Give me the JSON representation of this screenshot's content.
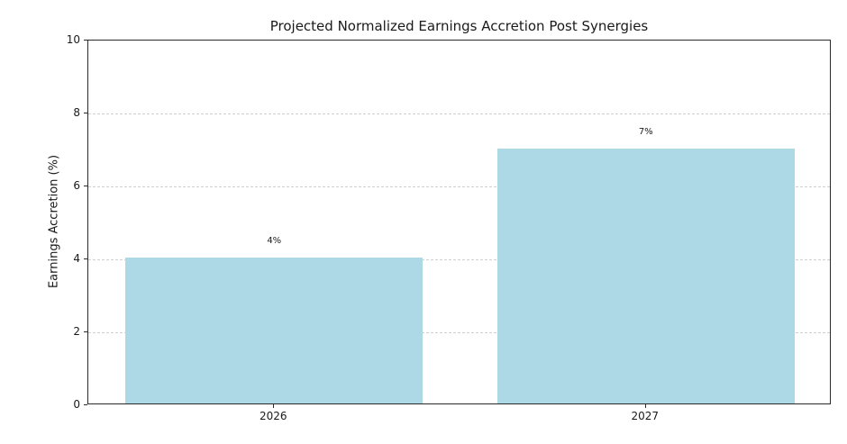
{
  "chart_data": {
    "type": "bar",
    "title": "Projected Normalized Earnings Accretion Post Synergies",
    "xlabel": "",
    "ylabel": "Earnings Accretion (%)",
    "categories": [
      "2026",
      "2027"
    ],
    "values": [
      4,
      7
    ],
    "bar_labels": [
      "4%",
      "7%"
    ],
    "ylim": [
      0,
      10
    ],
    "yticks": [
      0,
      2,
      4,
      6,
      8,
      10
    ],
    "grid": "horizontal-dashed",
    "legend": "none",
    "colors": {
      "bar_fill": "#ADD8E6",
      "gridline": "#cfcfcf",
      "spine": "#2a2a2a",
      "text": "#1a1a1a",
      "background": "#ffffff"
    }
  }
}
